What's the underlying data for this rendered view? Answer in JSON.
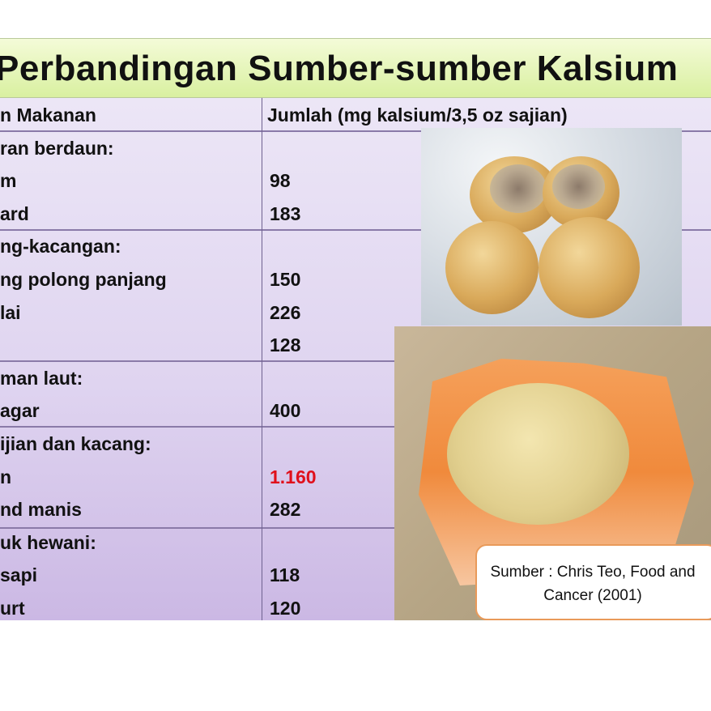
{
  "slide": {
    "title": "Perbandingan Sumber-sumber Kalsium",
    "table": {
      "headers": [
        "n Makanan",
        "Jumlah (mg kalsium/3,5 oz sajian)"
      ],
      "rows": [
        {
          "food": "ran berdaun:",
          "amount": ""
        },
        {
          "food": "m",
          "amount": "98"
        },
        {
          "food": "ard",
          "amount": "183"
        },
        {
          "food": "ng-kacangan:",
          "amount": ""
        },
        {
          "food": "ng polong panjang",
          "amount": "150"
        },
        {
          "food": "lai",
          "amount": "226"
        },
        {
          "food": "",
          "amount": "128"
        },
        {
          "food": "man laut:",
          "amount": ""
        },
        {
          "food": "agar",
          "amount": "400"
        },
        {
          "food": "ijian dan kacang:",
          "amount": ""
        },
        {
          "food": "n",
          "amount": "1.160",
          "highlight": "#e0101c"
        },
        {
          "food": "nd manis",
          "amount": "282"
        },
        {
          "food": "uk hewani:",
          "amount": ""
        },
        {
          "food": "sapi",
          "amount": "118"
        },
        {
          "food": "urt",
          "amount": "120"
        }
      ]
    },
    "source_note": "Sumber :  Chris Teo, Food and Cancer (2001)",
    "colors": {
      "title_bg": "#d9f0a0",
      "table_bg": "#dfd4f0",
      "highlight": "#e0101c",
      "source_border": "#e99a5a"
    }
  }
}
